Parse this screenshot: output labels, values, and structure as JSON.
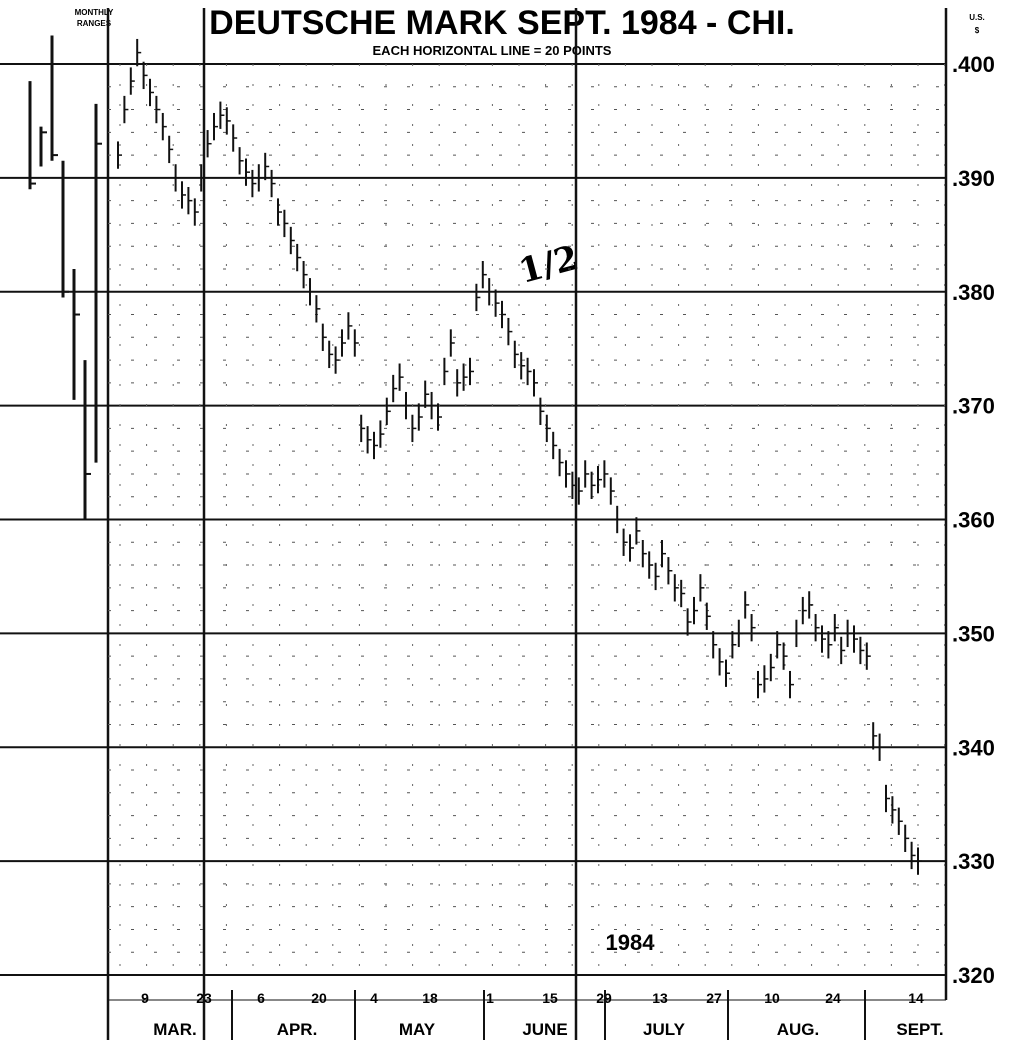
{
  "chart_data": {
    "type": "bar",
    "title": "DEUTSCHE MARK  SEPT. 1984 - CHI.",
    "subtitle": "EACH HORIZONTAL LINE = 20 POINTS",
    "corner_label_left": [
      "MONTHLY",
      "RANGES"
    ],
    "corner_label_right": [
      "U.S.",
      "$"
    ],
    "ylim": [
      0.32,
      0.4
    ],
    "y_ticks": [
      ".400",
      ".390",
      ".380",
      ".370",
      ".360",
      ".350",
      ".340",
      ".330",
      ".320"
    ],
    "x_ticks": [
      "9",
      "23",
      "6",
      "20",
      "4",
      "18",
      "1",
      "15",
      "29",
      "13",
      "27",
      "10",
      "24",
      "14"
    ],
    "months": [
      "MAR.",
      "APR.",
      "MAY",
      "JUNE",
      "JULY",
      "AUG.",
      "SEPT."
    ],
    "annotations": [
      "1/2",
      "1984"
    ],
    "monthly_ranges": [
      {
        "high": 0.3985,
        "low": 0.389,
        "close": 0.3895
      },
      {
        "high": 0.3945,
        "low": 0.391,
        "close": 0.394
      },
      {
        "high": 0.4025,
        "low": 0.3915,
        "close": 0.392
      },
      {
        "high": 0.3915,
        "low": 0.3795,
        "close": 0.38
      },
      {
        "high": 0.382,
        "low": 0.3705,
        "close": 0.378
      },
      {
        "high": 0.374,
        "low": 0.36,
        "close": 0.364
      },
      {
        "high": 0.3965,
        "low": 0.365,
        "close": 0.393
      }
    ],
    "daily_close": [
      0.392,
      0.396,
      0.3985,
      0.401,
      0.399,
      0.3975,
      0.396,
      0.3945,
      0.3925,
      0.39,
      0.3885,
      0.388,
      0.387,
      0.39,
      0.393,
      0.3945,
      0.3955,
      0.395,
      0.3935,
      0.3915,
      0.3905,
      0.3895,
      0.39,
      0.391,
      0.3895,
      0.387,
      0.386,
      0.3845,
      0.383,
      0.3815,
      0.38,
      0.3785,
      0.376,
      0.3745,
      0.374,
      0.3755,
      0.377,
      0.3755,
      0.368,
      0.367,
      0.3665,
      0.3675,
      0.3695,
      0.3715,
      0.3725,
      0.37,
      0.368,
      0.369,
      0.371,
      0.37,
      0.369,
      0.373,
      0.3755,
      0.372,
      0.3725,
      0.373,
      0.3795,
      0.3815,
      0.38,
      0.379,
      0.378,
      0.3765,
      0.3745,
      0.3735,
      0.373,
      0.372,
      0.3695,
      0.368,
      0.3665,
      0.365,
      0.364,
      0.363,
      0.3625,
      0.364,
      0.363,
      0.3635,
      0.364,
      0.3625,
      0.36,
      0.358,
      0.3575,
      0.359,
      0.357,
      0.356,
      0.355,
      0.357,
      0.3555,
      0.354,
      0.3535,
      0.351,
      0.352,
      0.354,
      0.3515,
      0.349,
      0.3475,
      0.3465,
      0.349,
      0.35,
      0.3525,
      0.3505,
      0.3455,
      0.346,
      0.347,
      0.349,
      0.348,
      0.3455,
      0.35,
      0.352,
      0.3525,
      0.3505,
      0.3495,
      0.349,
      0.3505,
      0.3485,
      0.35,
      0.3495,
      0.3485,
      0.348,
      0.341,
      0.34,
      0.3355,
      0.3345,
      0.3335,
      0.332,
      0.3305,
      0.33
    ]
  }
}
